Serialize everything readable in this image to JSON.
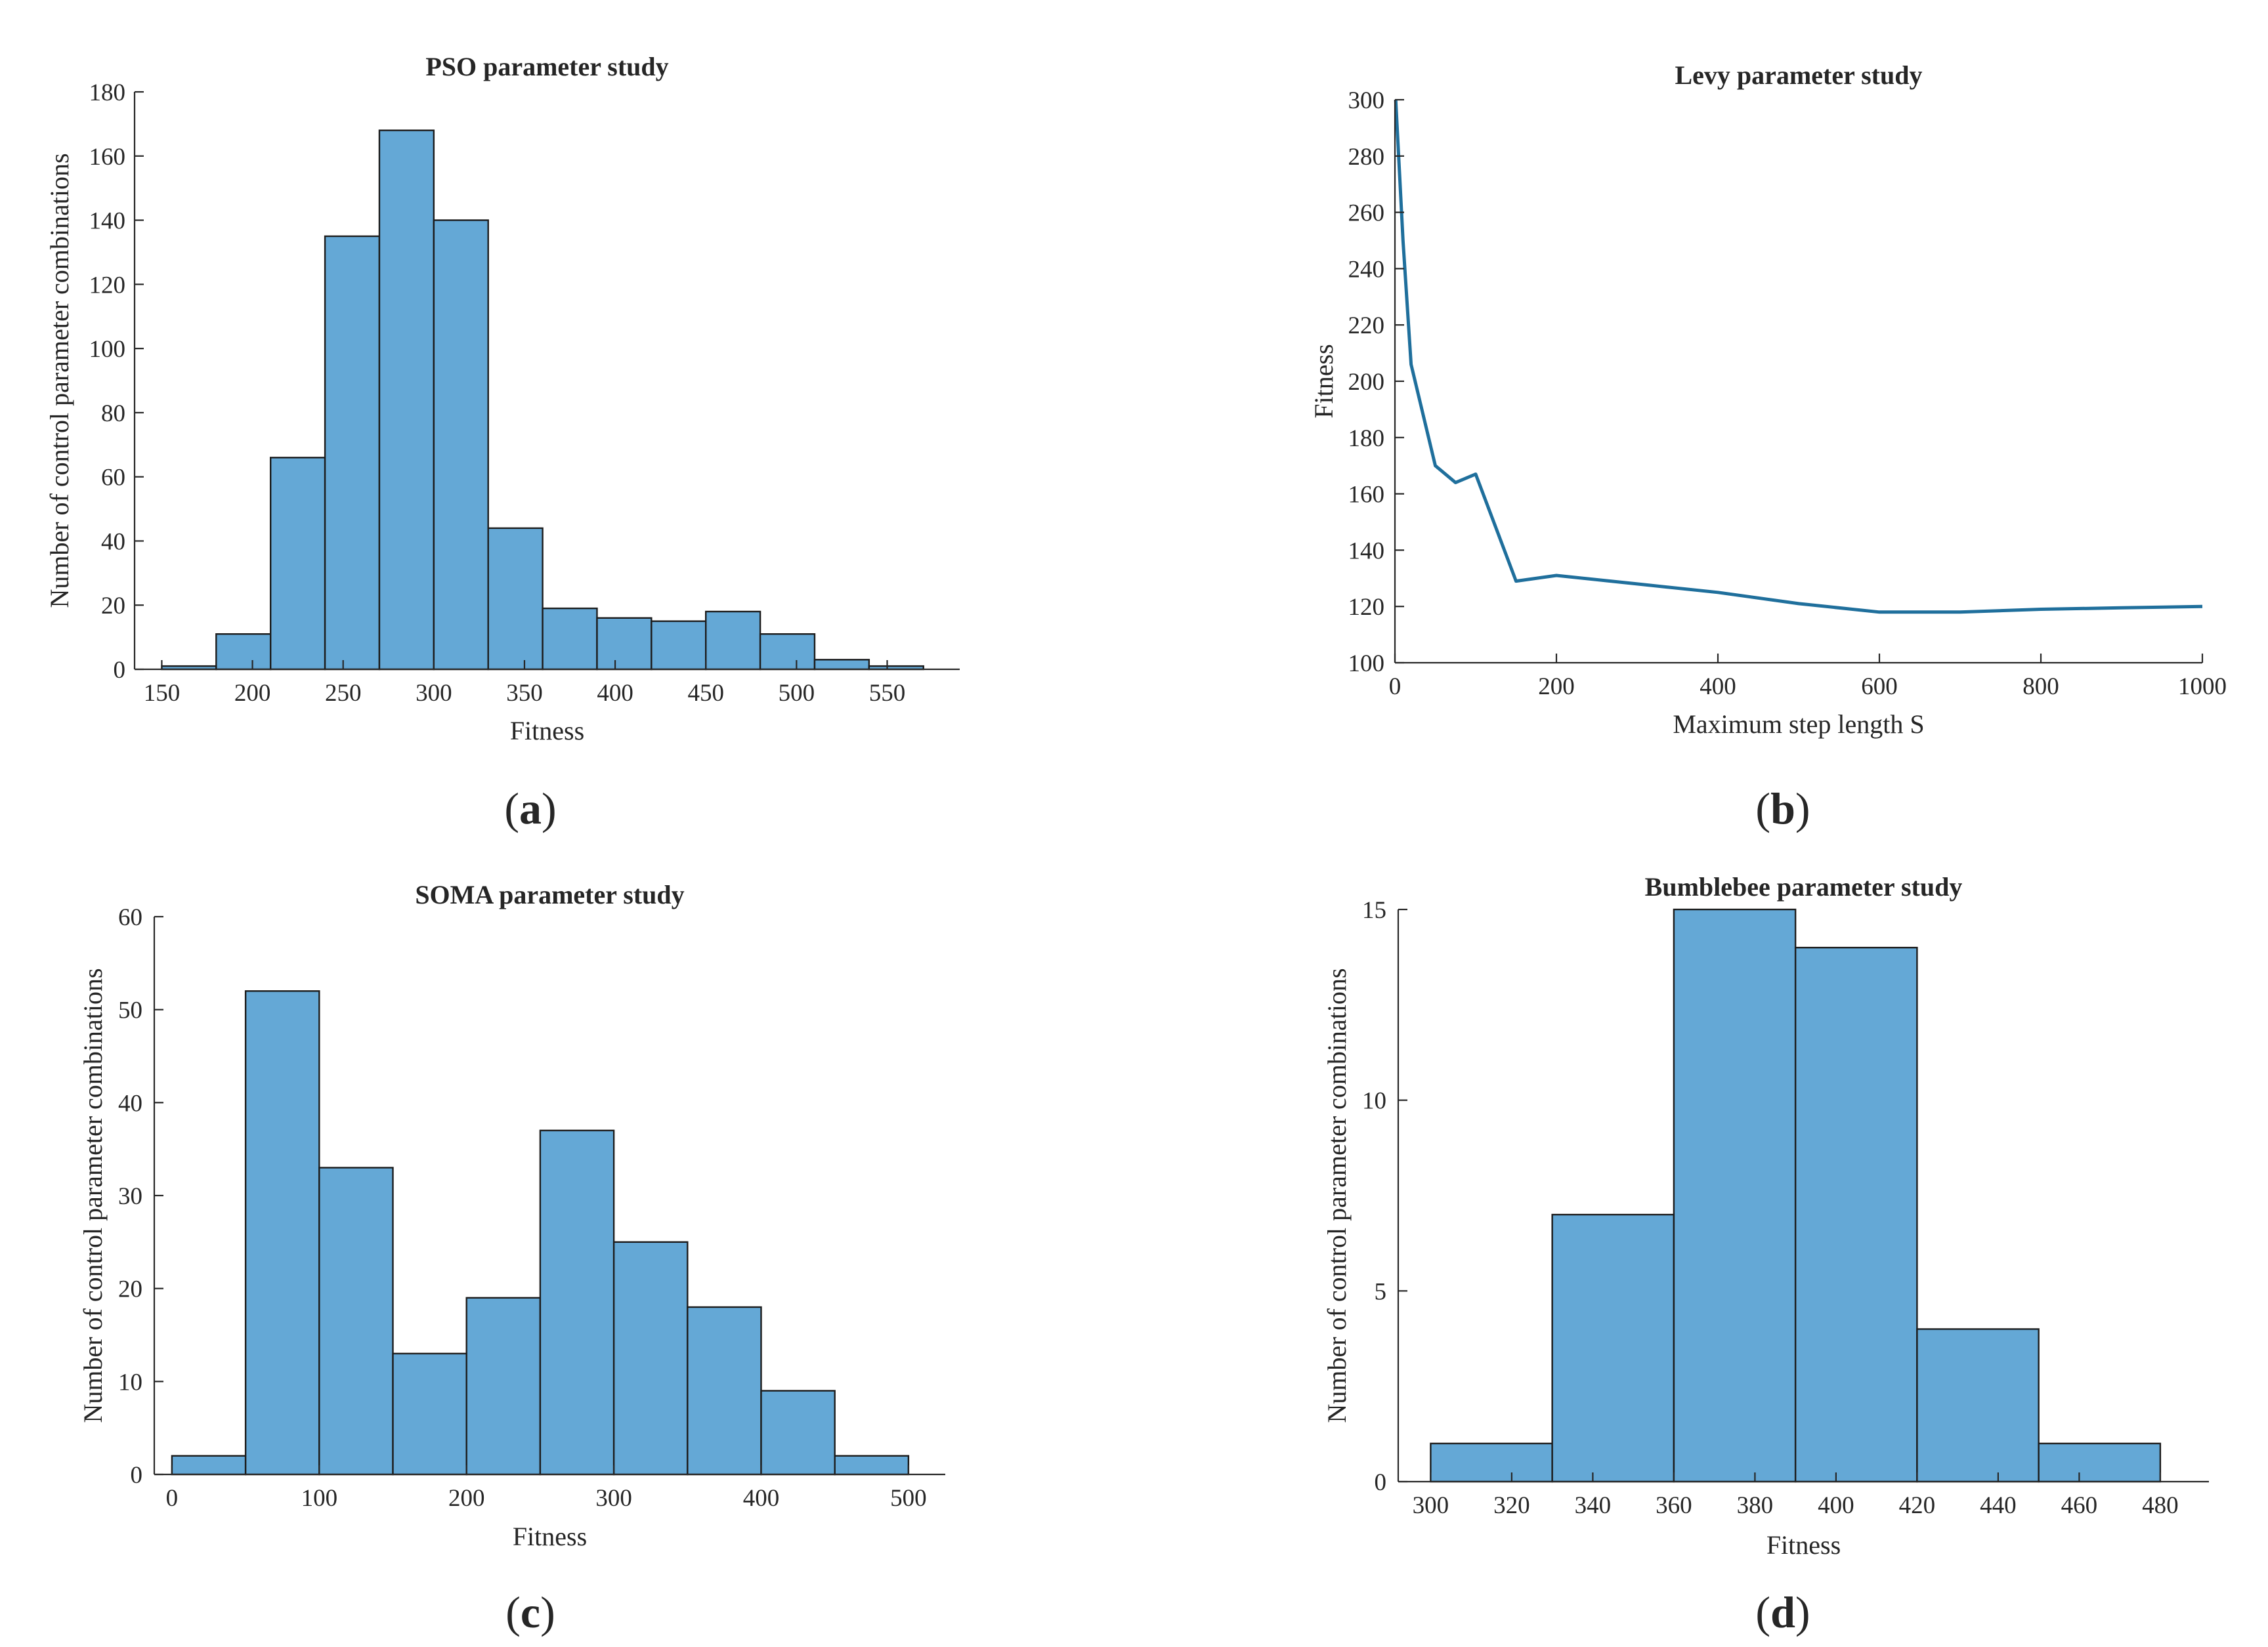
{
  "chart_data": [
    {
      "type": "bar",
      "panel": "(a)",
      "panel_letter": "a",
      "title": "PSO parameter study",
      "xlabel": "Fitness",
      "ylabel": "Number of control parameter combinations",
      "xlim": [
        135,
        590
      ],
      "ylim": [
        0,
        180
      ],
      "xticks": [
        150,
        200,
        250,
        300,
        350,
        400,
        450,
        500,
        550
      ],
      "yticks": [
        0,
        20,
        40,
        60,
        80,
        100,
        120,
        140,
        160,
        180
      ],
      "bin_edges": [
        150,
        180,
        210,
        240,
        270,
        300,
        330,
        360,
        390,
        420,
        450,
        480,
        510,
        540,
        570
      ],
      "values": [
        1,
        11,
        66,
        135,
        168,
        140,
        44,
        19,
        16,
        15,
        18,
        11,
        3,
        1
      ]
    },
    {
      "type": "line",
      "panel": "(b)",
      "panel_letter": "b",
      "title": "Levy parameter study",
      "xlabel": "Maximum step length S",
      "ylabel": "Fitness",
      "xlim": [
        0,
        1000
      ],
      "ylim": [
        100,
        300
      ],
      "xticks": [
        0,
        200,
        400,
        600,
        800,
        1000
      ],
      "yticks": [
        100,
        120,
        140,
        160,
        180,
        200,
        220,
        240,
        260,
        280,
        300
      ],
      "series": [
        {
          "name": "Fitness",
          "x": [
            1,
            10,
            20,
            50,
            75,
            100,
            150,
            200,
            300,
            400,
            500,
            600,
            700,
            800,
            900,
            1000
          ],
          "y": [
            300,
            250,
            206,
            170,
            164,
            167,
            129,
            131,
            128,
            125,
            121,
            118,
            118,
            119,
            119.5,
            120
          ]
        }
      ]
    },
    {
      "type": "bar",
      "panel": "(c)",
      "panel_letter": "c",
      "title": "SOMA parameter study",
      "xlabel": "Fitness",
      "ylabel": "Number of control parameter combinations",
      "xlim": [
        -12,
        525
      ],
      "ylim": [
        0,
        60
      ],
      "xticks": [
        0,
        100,
        200,
        300,
        400,
        500
      ],
      "yticks": [
        0,
        10,
        20,
        30,
        40,
        50,
        60
      ],
      "bin_edges": [
        0,
        50,
        100,
        150,
        200,
        250,
        300,
        350,
        400,
        450,
        500
      ],
      "values": [
        2,
        52,
        33,
        13,
        19,
        37,
        25,
        18,
        9,
        2
      ]
    },
    {
      "type": "bar",
      "panel": "(d)",
      "panel_letter": "d",
      "title": "Bumblebee parameter study",
      "xlabel": "Fitness",
      "ylabel": "Number of control parameter combinations",
      "xlim": [
        292,
        492
      ],
      "ylim": [
        0,
        15
      ],
      "xticks": [
        300,
        320,
        340,
        360,
        380,
        400,
        420,
        440,
        460,
        480
      ],
      "yticks": [
        0,
        5,
        10,
        15
      ],
      "bin_edges": [
        300,
        330,
        360,
        390,
        420,
        450,
        480
      ],
      "values": [
        1,
        7,
        15,
        14,
        4,
        1
      ]
    }
  ]
}
